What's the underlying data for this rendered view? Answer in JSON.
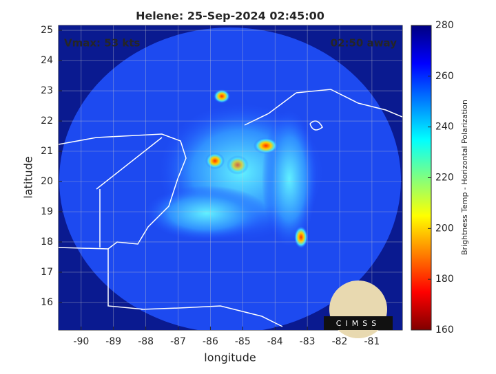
{
  "chart_data": {
    "type": "map",
    "title": "Helene: 25-Sep-2024 02:45:00",
    "annotations": [
      "Vmax: 53 kts",
      "02:50 away"
    ],
    "logo": "CIMSS",
    "x_label": "longitude",
    "y_label": "latitude",
    "xlim": [
      -90.7,
      -80.06
    ],
    "ylim": [
      15.09,
      25.16
    ],
    "xticks": [
      -90,
      -89,
      -88,
      -87,
      -86,
      -85,
      -84,
      -83,
      -82,
      -81
    ],
    "yticks": [
      16,
      17,
      18,
      19,
      20,
      21,
      22,
      23,
      24,
      25
    ],
    "grid": true,
    "colorbar": {
      "label": "Brightness Temp - Horizontal Polarization",
      "colormap": "jet",
      "clim": [
        160,
        280
      ],
      "ticks": [
        160,
        180,
        200,
        220,
        240,
        260,
        280
      ]
    }
  }
}
